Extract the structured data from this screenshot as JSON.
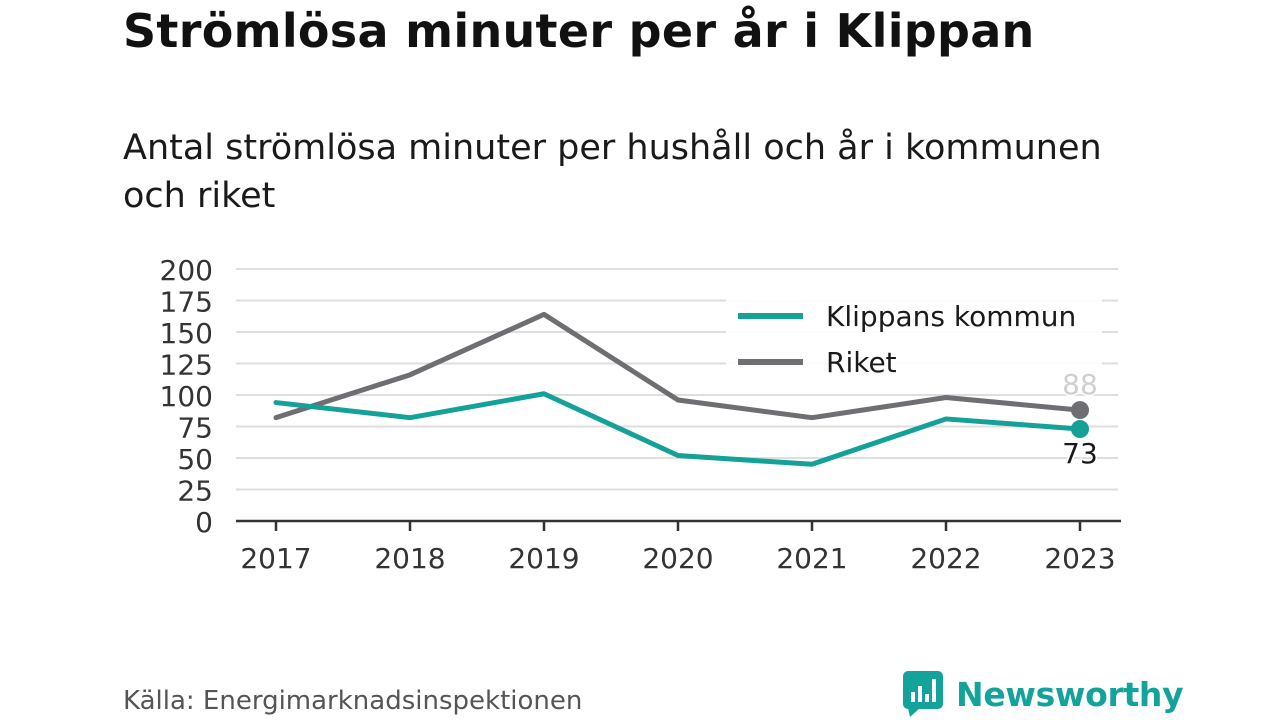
{
  "title": "Strömlösa minuter per år i Klippan",
  "subtitle": "Antal strömlösa minuter per hushåll och år i kommunen och riket",
  "source": "Källa: Energimarknadsinspektionen",
  "brand": {
    "name": "Newsworthy",
    "icon": "newsworthy-logo-icon",
    "color": "#14a39a"
  },
  "chart_data": {
    "type": "line",
    "x": [
      "2017",
      "2018",
      "2019",
      "2020",
      "2021",
      "2022",
      "2023"
    ],
    "yticks": [
      "0",
      "25",
      "50",
      "75",
      "100",
      "125",
      "150",
      "175",
      "200"
    ],
    "ylim": [
      0,
      200
    ],
    "grid": true,
    "legend_position": "top-right",
    "series": [
      {
        "name": "Klippans kommun",
        "color": "#13a198",
        "values": [
          94,
          82,
          101,
          52,
          45,
          81,
          73
        ],
        "end_label": "73"
      },
      {
        "name": "Riket",
        "color": "#6e6e73",
        "values": [
          82,
          116,
          164,
          96,
          82,
          98,
          88
        ],
        "end_label": "88"
      }
    ]
  }
}
